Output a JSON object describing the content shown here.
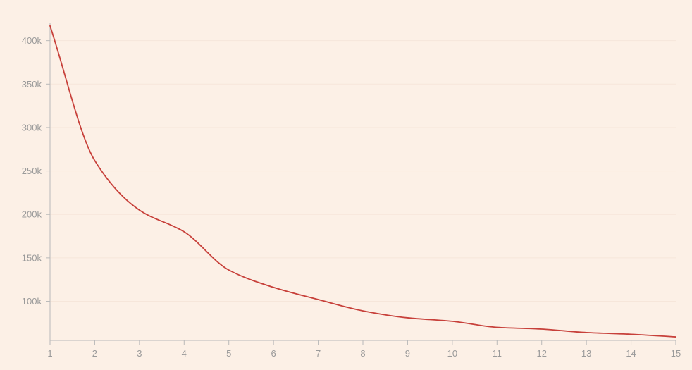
{
  "colors": {
    "background": "#fcf0e6",
    "line": "#c7403a",
    "axis": "#b9b9b9",
    "grid": "#f6e6da",
    "tick_label": "#9a9a9a"
  },
  "chart_data": {
    "type": "line",
    "title": "",
    "xlabel": "",
    "ylabel": "",
    "x": [
      1,
      2,
      3,
      4,
      5,
      6,
      7,
      8,
      9,
      10,
      11,
      12,
      13,
      14,
      15
    ],
    "series": [
      {
        "values": [
          417000,
          262000,
          205000,
          180000,
          136000,
          116000,
          102000,
          89000,
          81000,
          77000,
          70000,
          68000,
          64000,
          62000,
          59000
        ]
      }
    ],
    "xlim": [
      1,
      15
    ],
    "ylim": [
      55000,
      420000
    ],
    "y_ticks": [
      100000,
      150000,
      200000,
      250000,
      300000,
      350000,
      400000
    ],
    "y_tick_labels": [
      "100k",
      "150k",
      "200k",
      "250k",
      "300k",
      "350k",
      "400k"
    ],
    "x_ticks": [
      1,
      2,
      3,
      4,
      5,
      6,
      7,
      8,
      9,
      10,
      11,
      12,
      13,
      14,
      15
    ],
    "x_tick_labels": [
      "1",
      "2",
      "3",
      "4",
      "5",
      "6",
      "7",
      "8",
      "9",
      "10",
      "11",
      "12",
      "13",
      "14",
      "15"
    ],
    "grid": true,
    "legend": "none"
  }
}
